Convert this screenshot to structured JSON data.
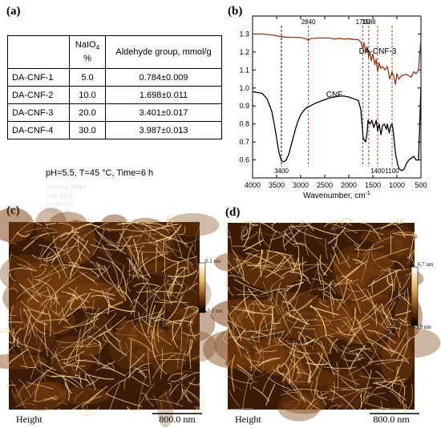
{
  "panels": {
    "a": "(a)",
    "b": "(b)",
    "c": "(c)",
    "d": "(d)"
  },
  "table": {
    "header": {
      "sample": "",
      "naio4": "NaIO",
      "naio4_sub": "4",
      "naio4_unit": "%",
      "aldehyde": "Aldehyde group, mmol/g"
    },
    "rows": [
      {
        "sample": "DA-CNF-1",
        "naio4": "5.0",
        "aldehyde": "0.784±0.009"
      },
      {
        "sample": "DA-CNF-2",
        "naio4": "10.0",
        "aldehyde": "1.698±0.011"
      },
      {
        "sample": "DA-CNF-3",
        "naio4": "20.0",
        "aldehyde": "3.401±0.017"
      },
      {
        "sample": "DA-CNF-4",
        "naio4": "30.0",
        "aldehyde": "3.987±0.013"
      }
    ],
    "condition": "pH=5.5, T=45 °C, Time=6 h",
    "ghost_lines": [
      "Slavo2  Millis",
      "mill  6m1",
      "n  ellto3s",
      "bn1ens"
    ]
  },
  "chart_data": {
    "type": "line",
    "title": "",
    "xlabel": "Wavenumber, cm",
    "xlabel_sup": "-1",
    "ylabel": "",
    "xlim": [
      4000,
      500
    ],
    "ylim": [
      0.5,
      1.4
    ],
    "x_ticks": [
      4000,
      3500,
      3000,
      2500,
      2000,
      1500,
      1000,
      500
    ],
    "y_ticks": [
      0.6,
      0.7,
      0.8,
      0.9,
      1.0,
      1.1,
      1.2,
      1.3
    ],
    "x_tick_labels": [
      "4000",
      "3500",
      "3000",
      "2500",
      "2000",
      "1500",
      "1000",
      "500"
    ],
    "y_tick_labels": [
      "0.6",
      "0.7",
      "0.8",
      "0.9",
      "1.0",
      "1.1",
      "1.2",
      "1.3"
    ],
    "reference_lines": [
      {
        "x": 3400,
        "label": "3400",
        "label_pos": "bottom",
        "color": "#000000"
      },
      {
        "x": 2840,
        "label": "2840",
        "label_pos": "top",
        "color": "#c0392b"
      },
      {
        "x": 1710,
        "label": "1710",
        "label_pos": "top",
        "color": "#c0392b"
      },
      {
        "x": 1586,
        "label": "1586",
        "label_pos": "top",
        "color": "#c0392b"
      },
      {
        "x": 1400,
        "label": "1400",
        "label_pos": "bottom",
        "color": "#c0392b"
      },
      {
        "x": 1100,
        "label": "1100",
        "label_pos": "bottom",
        "color": "#c0392b"
      }
    ],
    "series": [
      {
        "name": "DA-CNF-3",
        "color": "#8b3a1e",
        "label_at": [
          1400,
          1.19
        ],
        "x": [
          4000,
          3800,
          3600,
          3500,
          3400,
          3300,
          3200,
          3000,
          2900,
          2840,
          2800,
          2600,
          2400,
          2300,
          2200,
          2100,
          2000,
          1900,
          1800,
          1750,
          1710,
          1680,
          1650,
          1620,
          1586,
          1560,
          1530,
          1500,
          1460,
          1430,
          1400,
          1370,
          1340,
          1300,
          1250,
          1200,
          1150,
          1100,
          1060,
          1030,
          1000,
          960,
          900,
          800,
          700,
          650,
          600,
          550,
          500
        ],
        "y": [
          1.3,
          1.3,
          1.295,
          1.29,
          1.285,
          1.283,
          1.282,
          1.28,
          1.275,
          1.265,
          1.275,
          1.278,
          1.278,
          1.272,
          1.276,
          1.272,
          1.274,
          1.27,
          1.268,
          1.255,
          1.22,
          1.25,
          1.2,
          1.23,
          1.17,
          1.2,
          1.15,
          1.19,
          1.13,
          1.16,
          1.09,
          1.14,
          1.11,
          1.12,
          1.1,
          1.12,
          1.05,
          1.09,
          1.06,
          1.02,
          1.08,
          1.05,
          1.07,
          1.075,
          1.06,
          1.09,
          1.08,
          1.1,
          1.28
        ]
      },
      {
        "name": "CNF",
        "color": "#000000",
        "label_at": [
          2300,
          0.95
        ],
        "x": [
          4000,
          3900,
          3800,
          3700,
          3600,
          3550,
          3500,
          3450,
          3400,
          3350,
          3300,
          3250,
          3200,
          3150,
          3100,
          3050,
          3000,
          2950,
          2900,
          2850,
          2800,
          2700,
          2600,
          2500,
          2400,
          2300,
          2200,
          2100,
          2000,
          1900,
          1800,
          1750,
          1700,
          1650,
          1620,
          1600,
          1560,
          1520,
          1480,
          1430,
          1400,
          1370,
          1330,
          1300,
          1260,
          1220,
          1200,
          1160,
          1130,
          1100,
          1080,
          1060,
          1040,
          1020,
          1000,
          980,
          950,
          900,
          850,
          800,
          750,
          700,
          650,
          600,
          550,
          500
        ],
        "y": [
          0.98,
          0.975,
          0.97,
          0.94,
          0.87,
          0.8,
          0.72,
          0.64,
          0.595,
          0.59,
          0.6,
          0.63,
          0.68,
          0.73,
          0.78,
          0.82,
          0.85,
          0.87,
          0.885,
          0.895,
          0.9,
          0.915,
          0.925,
          0.935,
          0.945,
          0.95,
          0.955,
          0.955,
          0.95,
          0.94,
          0.93,
          0.88,
          0.72,
          0.7,
          0.75,
          0.82,
          0.8,
          0.82,
          0.78,
          0.82,
          0.76,
          0.8,
          0.74,
          0.79,
          0.8,
          0.77,
          0.8,
          0.75,
          0.79,
          0.8,
          0.77,
          0.72,
          0.66,
          0.62,
          0.6,
          0.57,
          0.55,
          0.54,
          0.55,
          0.58,
          0.6,
          0.61,
          0.62,
          0.6,
          0.6,
          1.0
        ]
      }
    ]
  },
  "afm": {
    "c": {
      "caption": "Height",
      "scale": "800.0 nm",
      "cbar_max": "6.1 nm",
      "cbar_min": "-3.2 nm"
    },
    "d": {
      "caption": "Height",
      "scale": "800.0 nm",
      "cbar_max": "6.7 nm",
      "cbar_min": "-3.9 nm"
    }
  },
  "colors": {
    "afm_dark": "#3a1a05",
    "afm_mid": "#7a3f10",
    "afm_fiber": "#f4d28a"
  }
}
